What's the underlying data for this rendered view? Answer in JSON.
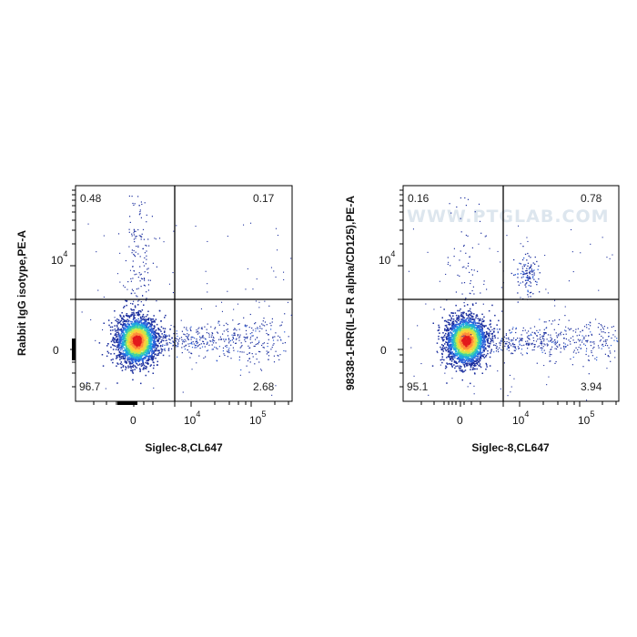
{
  "chart_data": [
    {
      "type": "scatter",
      "xlabel": "Siglec-8,CL647",
      "ylabel": "Rabbit IgG isotype,PE-A",
      "x_ticks": [
        {
          "base": "0",
          "exp": ""
        },
        {
          "base": "10",
          "exp": "4"
        },
        {
          "base": "10",
          "exp": "5"
        }
      ],
      "y_ticks": [
        {
          "base": "0",
          "exp": ""
        },
        {
          "base": "10",
          "exp": "4"
        }
      ],
      "gate": {
        "x": 6500,
        "y": 6500
      },
      "quadrants": {
        "upper_left": "0.48",
        "upper_right": "0.17",
        "lower_left": "96.7",
        "lower_right": "2.68"
      },
      "watermark": ""
    },
    {
      "type": "scatter",
      "xlabel": "Siglec-8,CL647",
      "ylabel": "98338-1-RR(IL-5 R alpha/CD125),PE-A",
      "x_ticks": [
        {
          "base": "0",
          "exp": ""
        },
        {
          "base": "10",
          "exp": "4"
        },
        {
          "base": "10",
          "exp": "5"
        }
      ],
      "y_ticks": [
        {
          "base": "0",
          "exp": ""
        },
        {
          "base": "10",
          "exp": "4"
        }
      ],
      "gate": {
        "x": 6500,
        "y": 6500
      },
      "quadrants": {
        "upper_left": "0.16",
        "upper_right": "0.78",
        "lower_left": "95.1",
        "lower_right": "3.94"
      },
      "watermark": "WWW.PTGLAB.COM"
    }
  ]
}
